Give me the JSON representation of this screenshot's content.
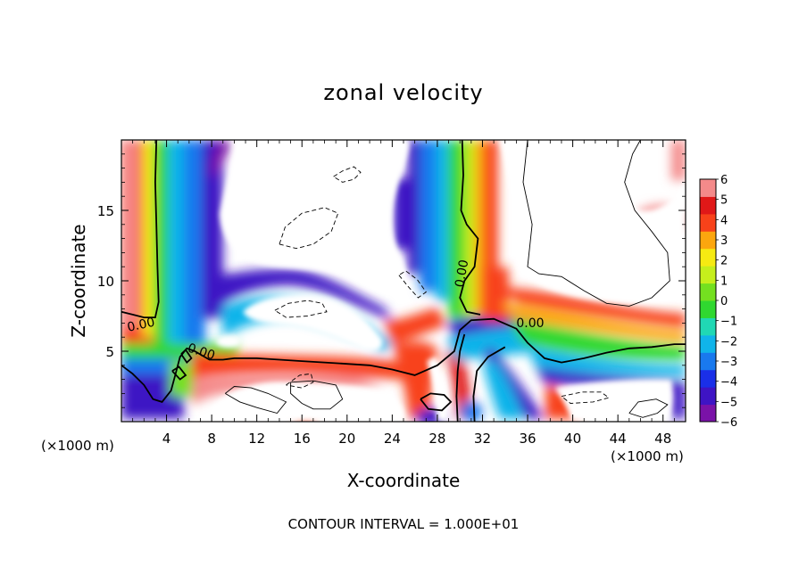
{
  "chart_data": {
    "type": "heatmap",
    "title": "zonal velocity",
    "xlabel": "X-coordinate",
    "ylabel": "Z-coordinate",
    "x_unit_left": "(×1000 m)",
    "x_unit_right": "(×1000 m)",
    "footer": "CONTOUR INTERVAL = 1.000E+01",
    "xlim": [
      0,
      50
    ],
    "ylim": [
      0,
      20
    ],
    "x_ticks": [
      4,
      8,
      12,
      16,
      20,
      24,
      28,
      32,
      36,
      40,
      44,
      48
    ],
    "x_tick_labels": [
      "4",
      "8",
      "12",
      "16",
      "20",
      "24",
      "28",
      "32",
      "36",
      "40",
      "44",
      "48"
    ],
    "y_ticks": [
      5,
      10,
      15
    ],
    "y_tick_labels": [
      "5",
      "10",
      "15"
    ],
    "colorbar": {
      "range": [
        -6,
        6
      ],
      "tick_labels": [
        "6",
        "5",
        "4",
        "3",
        "2",
        "1",
        "0",
        "−1",
        "−2",
        "−3",
        "−4",
        "−5",
        "−6"
      ],
      "colors": [
        "#7a12a8",
        "#3e14c4",
        "#1a2fe8",
        "#1979ee",
        "#10b4ea",
        "#20d8b4",
        "#30d830",
        "#74e020",
        "#c6ee1c",
        "#f6ea12",
        "#fca60e",
        "#f8421a",
        "#e01818",
        "#f48a8a"
      ]
    },
    "contour_labels": [
      "0.00",
      "0.00",
      "0.00",
      "0.00"
    ],
    "contours": [
      {
        "level": 0,
        "style": "bold",
        "points": [
          [
            0,
            7.8
          ],
          [
            1,
            7.6
          ],
          [
            2,
            7.4
          ],
          [
            3,
            7.4
          ],
          [
            3.3,
            8.5
          ],
          [
            3.2,
            11
          ],
          [
            3.1,
            14
          ],
          [
            3.0,
            17
          ],
          [
            3.1,
            20
          ]
        ]
      },
      {
        "level": 0,
        "style": "bold",
        "points": [
          [
            0,
            4
          ],
          [
            1,
            3.4
          ],
          [
            2,
            2.6
          ],
          [
            2.8,
            1.6
          ],
          [
            3.6,
            1.4
          ],
          [
            4.4,
            2.2
          ],
          [
            4.8,
            3.4
          ],
          [
            5.2,
            4.6
          ],
          [
            5.8,
            5.2
          ],
          [
            6.5,
            5
          ],
          [
            7.8,
            4.4
          ],
          [
            9,
            4.4
          ],
          [
            10,
            4.5
          ],
          [
            12,
            4.5
          ],
          [
            14,
            4.4
          ],
          [
            16,
            4.3
          ],
          [
            18,
            4.2
          ],
          [
            20,
            4.1
          ],
          [
            22,
            4.0
          ],
          [
            24,
            3.7
          ],
          [
            26,
            3.3
          ],
          [
            28,
            4
          ],
          [
            29.5,
            5
          ],
          [
            30,
            6.5
          ],
          [
            31,
            7.2
          ],
          [
            33,
            7.3
          ],
          [
            35,
            6.6
          ],
          [
            36,
            5.6
          ],
          [
            37.5,
            4.5
          ],
          [
            39,
            4.2
          ],
          [
            41,
            4.5
          ],
          [
            43,
            4.9
          ],
          [
            45,
            5.2
          ],
          [
            47,
            5.3
          ],
          [
            49,
            5.5
          ],
          [
            50,
            5.5
          ]
        ]
      },
      {
        "level": 0,
        "style": "bold",
        "points": [
          [
            29.8,
            0
          ],
          [
            29.7,
            1.8
          ],
          [
            29.8,
            3.6
          ],
          [
            30,
            5
          ],
          [
            30.4,
            6.2
          ]
        ]
      },
      {
        "level": 0,
        "style": "bold",
        "points": [
          [
            31.3,
            0
          ],
          [
            31.2,
            1.8
          ],
          [
            31.5,
            3.6
          ],
          [
            32.5,
            4.6
          ],
          [
            34,
            5.3
          ]
        ]
      },
      {
        "level": 0,
        "style": "bold",
        "points": [
          [
            30.2,
            20
          ],
          [
            30.3,
            17.5
          ],
          [
            30.1,
            15
          ],
          [
            30.6,
            14
          ],
          [
            31.6,
            13
          ],
          [
            31.3,
            11
          ],
          [
            30.4,
            10
          ],
          [
            30,
            8.8
          ],
          [
            30.6,
            7.8
          ],
          [
            31.8,
            7.6
          ]
        ]
      },
      {
        "level": 0,
        "style": "bold",
        "points": [
          [
            4.5,
            3.6
          ],
          [
            5.2,
            3.0
          ],
          [
            5.7,
            3.3
          ],
          [
            5.1,
            3.9
          ],
          [
            4.5,
            3.6
          ]
        ]
      },
      {
        "level": 0,
        "style": "bold",
        "points": [
          [
            5.3,
            4.8
          ],
          [
            5.8,
            4.2
          ],
          [
            6.2,
            4.5
          ],
          [
            5.7,
            5.1
          ],
          [
            5.3,
            4.8
          ]
        ]
      },
      {
        "level": 0,
        "style": "bold",
        "points": [
          [
            26.5,
            1.6
          ],
          [
            27.2,
            0.9
          ],
          [
            28.4,
            0.8
          ],
          [
            29.2,
            1.4
          ],
          [
            28.6,
            1.9
          ],
          [
            27.4,
            2
          ],
          [
            26.5,
            1.6
          ]
        ]
      },
      {
        "level": 10,
        "style": "thin",
        "points": [
          [
            36,
            20
          ],
          [
            35.6,
            17
          ],
          [
            36.4,
            14
          ],
          [
            36,
            11
          ],
          [
            37,
            10.5
          ],
          [
            39,
            10.3
          ],
          [
            41,
            9.3
          ],
          [
            43,
            8.4
          ],
          [
            45,
            8.2
          ],
          [
            47,
            8.8
          ],
          [
            48.6,
            10
          ],
          [
            48.4,
            12
          ],
          [
            47,
            13.5
          ],
          [
            45.5,
            15
          ],
          [
            44.6,
            17
          ],
          [
            45.3,
            19
          ],
          [
            46,
            20
          ]
        ]
      },
      {
        "level": 10,
        "style": "thin",
        "points": [
          [
            9.2,
            2
          ],
          [
            10.5,
            1.4
          ],
          [
            12,
            1
          ],
          [
            13.8,
            0.6
          ],
          [
            14.6,
            1.4
          ],
          [
            13,
            2
          ],
          [
            11.5,
            2.4
          ],
          [
            10,
            2.5
          ],
          [
            9.2,
            2
          ]
        ]
      },
      {
        "level": 10,
        "style": "thin",
        "points": [
          [
            15,
            2.8
          ],
          [
            17,
            2.9
          ],
          [
            19,
            2.6
          ],
          [
            19.6,
            1.6
          ],
          [
            18.5,
            0.9
          ],
          [
            17,
            0.9
          ],
          [
            16,
            1.3
          ],
          [
            15,
            2
          ],
          [
            15,
            2.8
          ]
        ]
      },
      {
        "level": 10,
        "style": "thin",
        "points": [
          [
            45,
            0.6
          ],
          [
            45.8,
            1.4
          ],
          [
            47.4,
            1.6
          ],
          [
            48.4,
            1.2
          ],
          [
            47.5,
            0.6
          ],
          [
            46.2,
            0.3
          ],
          [
            45,
            0.6
          ]
        ]
      },
      {
        "level": -10,
        "style": "dashed",
        "points": [
          [
            14,
            12.6
          ],
          [
            14.5,
            13.8
          ],
          [
            16,
            14.8
          ],
          [
            18,
            15.2
          ],
          [
            19.2,
            14.8
          ],
          [
            18.6,
            13.5
          ],
          [
            17,
            12.6
          ],
          [
            15.5,
            12.3
          ],
          [
            14,
            12.6
          ]
        ]
      },
      {
        "level": -10,
        "style": "dashed",
        "points": [
          [
            13.6,
            7.9
          ],
          [
            14.8,
            8.4
          ],
          [
            16.5,
            8.6
          ],
          [
            17.8,
            8.4
          ],
          [
            18.2,
            7.8
          ],
          [
            16.5,
            7.5
          ],
          [
            14.6,
            7.4
          ],
          [
            13.6,
            7.9
          ]
        ]
      },
      {
        "level": -10,
        "style": "dashed",
        "points": [
          [
            18.8,
            17.4
          ],
          [
            19.6,
            17.8
          ],
          [
            20.6,
            18.1
          ],
          [
            21.2,
            17.7
          ],
          [
            20.6,
            17.2
          ],
          [
            19.6,
            17
          ],
          [
            18.8,
            17.4
          ]
        ]
      },
      {
        "level": -10,
        "style": "dashed",
        "points": [
          [
            24.6,
            10.4
          ],
          [
            25.4,
            9.6
          ],
          [
            26.3,
            8.8
          ],
          [
            27,
            9.2
          ],
          [
            26.2,
            10.1
          ],
          [
            25.2,
            10.7
          ],
          [
            24.6,
            10.4
          ]
        ]
      },
      {
        "level": -10,
        "style": "dashed",
        "points": [
          [
            39,
            1.8
          ],
          [
            40.8,
            2.1
          ],
          [
            42.5,
            2.1
          ],
          [
            43.2,
            1.7
          ],
          [
            41.8,
            1.4
          ],
          [
            39.8,
            1.3
          ],
          [
            39,
            1.8
          ]
        ]
      },
      {
        "level": -10,
        "style": "dashed",
        "points": [
          [
            14.6,
            2.6
          ],
          [
            15.8,
            3.3
          ],
          [
            16.8,
            3.4
          ],
          [
            17,
            2.8
          ],
          [
            16,
            2.4
          ],
          [
            14.6,
            2.6
          ]
        ]
      }
    ]
  }
}
